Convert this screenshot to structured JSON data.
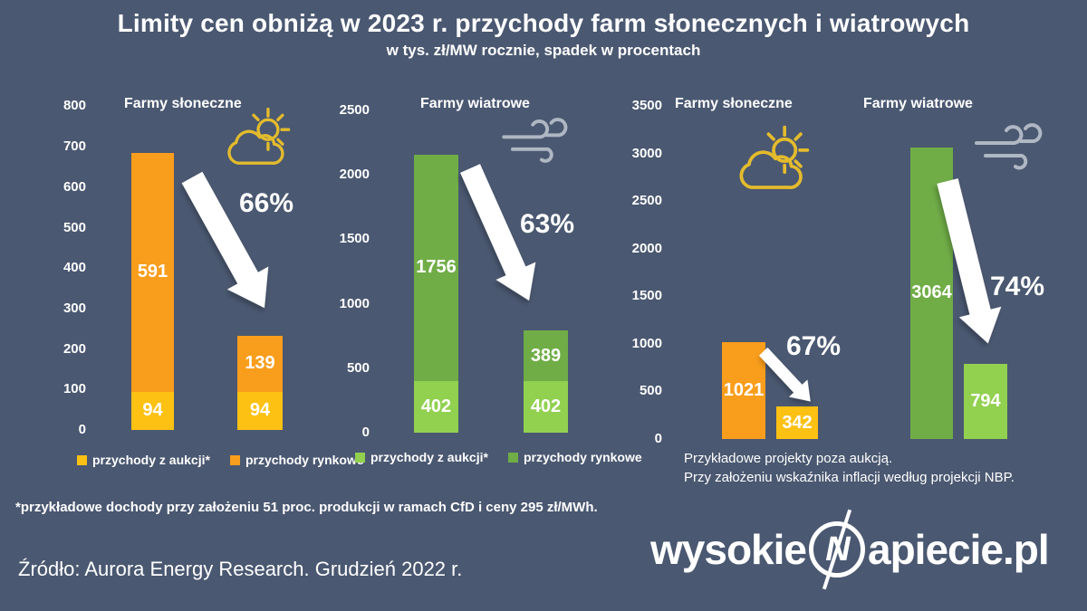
{
  "header": {
    "title": "Limity cen obniżą w 2023 r. przychody farm słonecznych i wiatrowych",
    "subtitle": "w tys. zł/MW rocznie, spadek w procentach"
  },
  "colors": {
    "background": "#4A5871",
    "yellow": "#FDC113",
    "orange": "#F99D1C",
    "green_dark": "#70AD47",
    "green_light": "#92D050",
    "white": "#FFFFFF",
    "sun_icon": "#E3BB2D",
    "wind_icon": "#AFB7C3"
  },
  "chart_data": [
    {
      "id": "solar-left",
      "type": "bar",
      "title": "Farmy słoneczne",
      "icon": "sun-cloud",
      "drop_label": "66%",
      "unit": "tys. zł/MW rocznie",
      "axis": {
        "min": 0,
        "max": 800,
        "step": 100,
        "show_labels": true
      },
      "bars": [
        {
          "segments": [
            {
              "value": 94,
              "label": "94",
              "color": "yellow",
              "series": "przychody z aukcji*"
            },
            {
              "value": 591,
              "label": "591",
              "color": "orange",
              "series": "przychody rynkowe"
            }
          ]
        },
        {
          "segments": [
            {
              "value": 94,
              "label": "94",
              "color": "yellow",
              "series": "przychody z aukcji*"
            },
            {
              "value": 139,
              "label": "139",
              "color": "orange",
              "series": "przychody rynkowe"
            }
          ]
        }
      ]
    },
    {
      "id": "wind-left",
      "type": "bar",
      "title": "Farmy wiatrowe",
      "icon": "wind",
      "drop_label": "63%",
      "unit": "tys. zł/MW rocznie",
      "axis": {
        "min": 0,
        "max": 2500,
        "step": 500,
        "show_labels": true
      },
      "bars": [
        {
          "segments": [
            {
              "value": 402,
              "label": "402",
              "color": "green_light",
              "series": "przychody z aukcji*"
            },
            {
              "value": 1756,
              "label": "1756",
              "color": "green_dark",
              "series": "przychody rynkowe"
            }
          ]
        },
        {
          "segments": [
            {
              "value": 402,
              "label": "402",
              "color": "green_light",
              "series": "przychody z aukcji*"
            },
            {
              "value": 389,
              "label": "389",
              "color": "green_dark",
              "series": "przychody rynkowe"
            }
          ]
        }
      ]
    },
    {
      "id": "solar-right",
      "type": "bar",
      "title": "Farmy słoneczne",
      "icon": "sun-cloud",
      "drop_label": "67%",
      "unit": "tys. zł/MW rocznie",
      "axis": {
        "min": 0,
        "max": 3500,
        "step": 500,
        "show_labels": true
      },
      "bars": [
        {
          "segments": [
            {
              "value": 1021,
              "label": "1021",
              "color": "orange",
              "series": "poza aukcją"
            }
          ]
        },
        {
          "segments": [
            {
              "value": 342,
              "label": "342",
              "color": "yellow",
              "series": "poza aukcją"
            }
          ]
        }
      ]
    },
    {
      "id": "wind-right",
      "type": "bar",
      "title": "Farmy wiatrowe",
      "icon": "wind",
      "drop_label": "74%",
      "unit": "tys. zł/MW rocznie",
      "axis": {
        "min": 0,
        "max": 3500,
        "step": 500,
        "show_labels": false
      },
      "bars": [
        {
          "segments": [
            {
              "value": 3064,
              "label": "3064",
              "color": "green_dark",
              "series": "poza aukcją"
            }
          ]
        },
        {
          "segments": [
            {
              "value": 794,
              "label": "794",
              "color": "green_light",
              "series": "poza aukcją"
            }
          ]
        }
      ]
    }
  ],
  "legends": {
    "solar": [
      {
        "label": "przychody z aukcji*",
        "color": "yellow"
      },
      {
        "label": "przychody rynkowe",
        "color": "orange"
      }
    ],
    "wind": [
      {
        "label": "przychody z aukcji*",
        "color": "green_light"
      },
      {
        "label": "przychody rynkowe",
        "color": "green_dark"
      }
    ]
  },
  "notes": {
    "right_note_line1": "Przykładowe projekty poza aukcją.",
    "right_note_line2": "Przy założeniu wskaźnika inflacji według projekcji NBP.",
    "footnote": "*przykładowe dochody przy założeniu 51 proc. produkcji w ramach CfD i ceny 295 zł/MWh.",
    "source": "Źródło: Aurora Energy Research. Grudzień 2022 r."
  },
  "logo": {
    "prefix": "wysokie",
    "symbol": "N",
    "suffix": "apiecie.pl"
  }
}
